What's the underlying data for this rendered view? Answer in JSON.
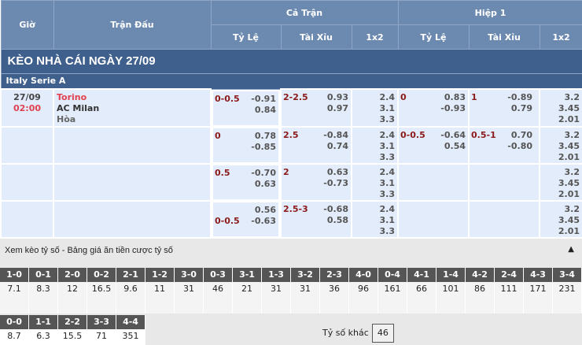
{
  "header": {
    "time": "Giờ",
    "match": "Trận Đấu",
    "full": "Cả Trận",
    "half": "Hiệp 1",
    "hdp": "Tỷ Lệ",
    "ou": "Tài Xỉu",
    "x12": "1x2"
  },
  "title": "KÈO NHÀ CÁI NGÀY 27/09",
  "league": "Italy Serie A",
  "match": {
    "date": "27/09",
    "time": "02:00",
    "home": "Torino",
    "away": "AC Milan",
    "draw": "Hòa"
  },
  "rows": [
    {
      "ft_hdp": "0-0.5",
      "ft_hdp_fav": "home",
      "ft_hdp_h": "-0.91",
      "ft_hdp_a": "0.84",
      "ft_ou": "2-2.5",
      "ft_ou_o": "0.93",
      "ft_ou_u": "0.97",
      "ft_1": "2.4",
      "ft_x": "3.1",
      "ft_2": "3.3",
      "h1_hdp": "0",
      "h1_hdp_h": "0.83",
      "h1_hdp_a": "-0.93",
      "h1_ou": "1",
      "h1_ou_o": "-0.89",
      "h1_ou_u": "0.79",
      "h1_1": "3.2",
      "h1_x": "3.45",
      "h1_2": "2.01"
    },
    {
      "ft_hdp": "0",
      "ft_hdp_fav": "home",
      "ft_hdp_h": "0.78",
      "ft_hdp_a": "-0.85",
      "ft_ou": "2.5",
      "ft_ou_o": "-0.84",
      "ft_ou_u": "0.74",
      "ft_1": "2.4",
      "ft_x": "3.1",
      "ft_2": "3.3",
      "h1_hdp": "0-0.5",
      "h1_hdp_h": "-0.64",
      "h1_hdp_a": "0.54",
      "h1_ou": "0.5-1",
      "h1_ou_o": "0.70",
      "h1_ou_u": "-0.80",
      "h1_1": "3.2",
      "h1_x": "3.45",
      "h1_2": "2.01"
    },
    {
      "ft_hdp": "0.5",
      "ft_hdp_fav": "home",
      "ft_hdp_h": "-0.70",
      "ft_hdp_a": "0.63",
      "ft_ou": "2",
      "ft_ou_o": "0.63",
      "ft_ou_u": "-0.73",
      "ft_1": "2.4",
      "ft_x": "3.1",
      "ft_2": "3.3",
      "h1_hdp": "",
      "h1_hdp_h": "",
      "h1_hdp_a": "",
      "h1_ou": "",
      "h1_ou_o": "",
      "h1_ou_u": "",
      "h1_1": "3.2",
      "h1_x": "3.45",
      "h1_2": "2.01"
    },
    {
      "ft_hdp": "0-0.5",
      "ft_hdp_fav": "away",
      "ft_hdp_h": "0.56",
      "ft_hdp_a": "-0.63",
      "ft_ou": "2.5-3",
      "ft_ou_o": "-0.68",
      "ft_ou_u": "0.58",
      "ft_1": "2.4",
      "ft_x": "3.1",
      "ft_2": "3.3",
      "h1_hdp": "",
      "h1_hdp_h": "",
      "h1_hdp_a": "",
      "h1_ou": "",
      "h1_ou_o": "",
      "h1_ou_u": "",
      "h1_1": "3.2",
      "h1_x": "3.45",
      "h1_2": "2.01"
    }
  ],
  "correct_score": {
    "title": "Xem kèo tỷ số - Bảng giá ăn tiền cược tỷ số",
    "row1": [
      [
        "1-0",
        "7.1"
      ],
      [
        "0-1",
        "8.3"
      ],
      [
        "2-0",
        "12"
      ],
      [
        "0-2",
        "16.5"
      ],
      [
        "2-1",
        "9.6"
      ],
      [
        "1-2",
        "11"
      ],
      [
        "3-0",
        "31"
      ],
      [
        "0-3",
        "46"
      ],
      [
        "3-1",
        "21"
      ],
      [
        "1-3",
        "31"
      ],
      [
        "3-2",
        "31"
      ],
      [
        "2-3",
        "36"
      ],
      [
        "4-0",
        "96"
      ],
      [
        "0-4",
        "161"
      ],
      [
        "4-1",
        "66"
      ],
      [
        "1-4",
        "101"
      ],
      [
        "4-2",
        "86"
      ],
      [
        "2-4",
        "111"
      ],
      [
        "4-3",
        "171"
      ],
      [
        "3-4",
        "231"
      ]
    ],
    "row2": [
      [
        "0-0",
        "8.7"
      ],
      [
        "1-1",
        "6.3"
      ],
      [
        "2-2",
        "15.5"
      ],
      [
        "3-3",
        "71"
      ],
      [
        "4-4",
        "351"
      ]
    ],
    "other_label": "Tỷ số khác",
    "other_value": "46"
  }
}
